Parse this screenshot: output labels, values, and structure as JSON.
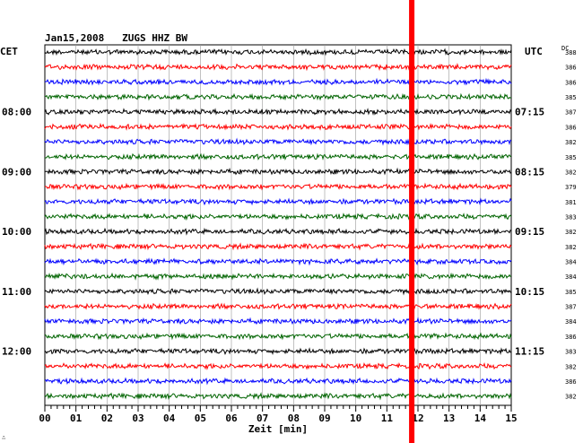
{
  "header": {
    "title": "Jan15,2008   ZUGS HHZ BW",
    "left_zone": "CET",
    "right_zone": "UTC",
    "dc_label": "DC"
  },
  "corner_mark": "∴",
  "chart_data": {
    "type": "line",
    "title": "Jan15,2008   ZUGS HHZ BW",
    "xlabel": "Zeit [min]",
    "x_ticks": [
      "00",
      "01",
      "02",
      "03",
      "04",
      "05",
      "06",
      "07",
      "08",
      "09",
      "10",
      "11",
      "12",
      "13",
      "14",
      "15"
    ],
    "xlim": [
      0,
      15
    ],
    "grid": true,
    "rows": 24,
    "row_minutes": 15,
    "left_time_labels": [
      {
        "row": 4,
        "label": "08:00"
      },
      {
        "row": 8,
        "label": "09:00"
      },
      {
        "row": 12,
        "label": "10:00"
      },
      {
        "row": 16,
        "label": "11:00"
      },
      {
        "row": 20,
        "label": "12:00"
      }
    ],
    "right_time_labels": [
      {
        "row": 4,
        "label": "07:15"
      },
      {
        "row": 8,
        "label": "08:15"
      },
      {
        "row": 12,
        "label": "09:15"
      },
      {
        "row": 16,
        "label": "10:15"
      },
      {
        "row": 20,
        "label": "11:15"
      }
    ],
    "dc_values": [
      "388",
      "386",
      "386",
      "385",
      "387",
      "386",
      "382",
      "385",
      "382",
      "379",
      "381",
      "383",
      "382",
      "382",
      "384",
      "384",
      "385",
      "387",
      "384",
      "386",
      "383",
      "382",
      "386",
      "382"
    ],
    "trace_colors": [
      "#000000",
      "#ff0000",
      "#0000ff",
      "#006400"
    ],
    "marker": {
      "minute": 11.8,
      "color": "#ff0000"
    }
  }
}
